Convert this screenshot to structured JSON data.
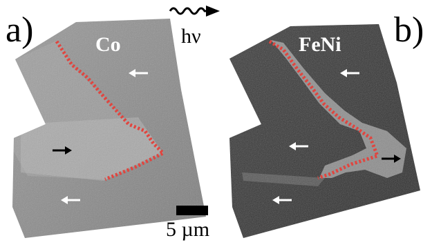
{
  "panels": [
    {
      "label": "a)",
      "element": "Co"
    },
    {
      "label": "b)",
      "element": "FeNi"
    }
  ],
  "beam_label": "hν",
  "scale_bar": {
    "label": "5 µm"
  },
  "colors": {
    "domain_wall": "#e0453f",
    "arrow_dark": "#000000",
    "arrow_light": "#ffffff"
  },
  "magnetization_arrows": {
    "a": [
      "left",
      "right",
      "left"
    ],
    "b": [
      "left",
      "left",
      "right",
      "left"
    ]
  }
}
